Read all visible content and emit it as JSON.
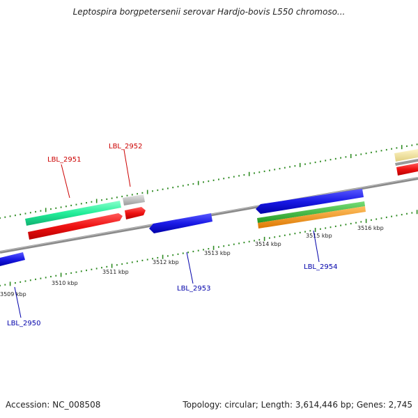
{
  "title": "Leptospira borgpetersenii serovar Hardjo-bovis L550 chromoso...",
  "footer": {
    "accession": "Accession: NC_008508",
    "stats": "Topology: circular; Length: 3,614,446 bp; Genes: 2,745"
  },
  "ruler": {
    "kbp_labels": [
      "3509 kbp",
      "3510 kbp",
      "3511 kbp",
      "3512 kbp",
      "3513 kbp",
      "3514 kbp",
      "3515 kbp",
      "3516 kbp"
    ]
  },
  "genes": {
    "forward": [
      {
        "name": "LBL_2951",
        "color": "#cc0000"
      },
      {
        "name": "LBL_2952",
        "color": "#cc0000"
      }
    ],
    "reverse": [
      {
        "name": "LBL_2950",
        "color": "#0000aa"
      },
      {
        "name": "LBL_2953",
        "color": "#0000aa"
      },
      {
        "name": "LBL_2954",
        "color": "#0000aa"
      }
    ]
  },
  "colors": {
    "backbone": "#8a8a8a",
    "tick": "#2e8b22",
    "cds_forward": "#ee1111",
    "cds_reverse": "#1a1ae6",
    "rna_green": "#22ee99",
    "gc_green": "#33bb33",
    "gc_orange": "#ff9900",
    "pseudo_gray": "#c8c8c8",
    "pale_yellow": "#f3e6a0"
  }
}
